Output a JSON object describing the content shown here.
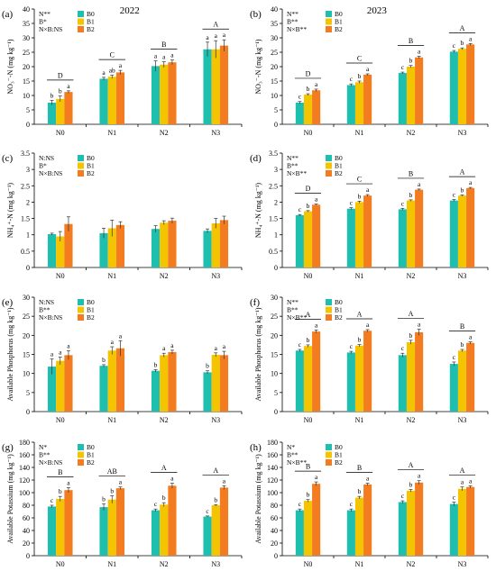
{
  "figure": {
    "colors": {
      "B0": "#1fbfb0",
      "B1": "#f5c400",
      "B2": "#f47c20"
    }
  },
  "chart_data": [
    {
      "panel": "(a)",
      "year": "2022",
      "type": "bar",
      "ylabel": "NO₃⁻-N (mg kg⁻¹)",
      "ylim": [
        0,
        40
      ],
      "yticks": [
        0,
        5,
        10,
        15,
        20,
        25,
        30,
        35,
        40
      ],
      "categories": [
        "N0",
        "N1",
        "N2",
        "N3"
      ],
      "legend": [
        "B0",
        "B1",
        "B2"
      ],
      "stats": [
        "N**",
        "B*",
        "N×B:NS"
      ],
      "group_letters": [
        "D",
        "C",
        "B",
        "A"
      ],
      "series": [
        {
          "name": "B0",
          "color": "#1fbfb0",
          "values": [
            7.5,
            15.8,
            20.2,
            26.0
          ],
          "errors": [
            0.8,
            0.5,
            1.8,
            2.5
          ],
          "letters": [
            "b",
            "a",
            "a",
            "a"
          ]
        },
        {
          "name": "B1",
          "color": "#f5c400",
          "values": [
            8.8,
            16.5,
            20.7,
            26.0
          ],
          "errors": [
            1.0,
            0.6,
            1.0,
            3.0
          ],
          "letters": [
            "b",
            "ab",
            "a",
            "a"
          ]
        },
        {
          "name": "B2",
          "color": "#f47c20",
          "values": [
            11.2,
            18.0,
            21.5,
            27.3
          ],
          "errors": [
            0.4,
            0.7,
            0.8,
            2.0
          ],
          "letters": [
            "a",
            "a",
            "a",
            "a"
          ]
        }
      ]
    },
    {
      "panel": "(b)",
      "year": "2023",
      "type": "bar",
      "ylabel": "NO₃⁻-N (mg kg⁻¹)",
      "ylim": [
        0,
        40
      ],
      "yticks": [
        0,
        5,
        10,
        15,
        20,
        25,
        30,
        35,
        40
      ],
      "categories": [
        "N0",
        "N1",
        "N2",
        "N3"
      ],
      "legend": [
        "B0",
        "B1",
        "B2"
      ],
      "stats": [
        "N**",
        "B**",
        "N×B**"
      ],
      "group_letters": [
        "D",
        "C",
        "B",
        "A"
      ],
      "series": [
        {
          "name": "B0",
          "color": "#1fbfb0",
          "values": [
            7.5,
            13.6,
            17.8,
            25.2
          ],
          "errors": [
            0.4,
            0.4,
            0.3,
            0.4
          ],
          "letters": [
            "c",
            "c",
            "c",
            "c"
          ]
        },
        {
          "name": "B1",
          "color": "#f5c400",
          "values": [
            10.3,
            14.6,
            20.0,
            26.2
          ],
          "errors": [
            0.3,
            0.4,
            0.4,
            0.3
          ],
          "letters": [
            "b",
            "b",
            "b",
            "b"
          ]
        },
        {
          "name": "B2",
          "color": "#f47c20",
          "values": [
            11.8,
            17.2,
            23.2,
            27.7
          ],
          "errors": [
            0.4,
            0.3,
            0.4,
            0.3
          ],
          "letters": [
            "a",
            "a",
            "a",
            "a"
          ]
        }
      ]
    },
    {
      "panel": "(c)",
      "type": "bar",
      "ylabel": "NH₄⁺-N (mg kg⁻¹)",
      "ylim": [
        0,
        3.5
      ],
      "yticks": [
        0,
        0.5,
        1,
        1.5,
        2,
        2.5,
        3,
        3.5
      ],
      "categories": [
        "N0",
        "N1",
        "N2",
        "N3"
      ],
      "legend": [
        "B0",
        "B1",
        "B2"
      ],
      "stats": [
        "N:NS",
        "B*",
        "N×B:NS"
      ],
      "group_letters": [],
      "series": [
        {
          "name": "B0",
          "color": "#1fbfb0",
          "values": [
            1.02,
            1.05,
            1.18,
            1.12
          ],
          "errors": [
            0.03,
            0.15,
            0.1,
            0.06
          ],
          "letters": []
        },
        {
          "name": "B1",
          "color": "#f5c400",
          "values": [
            0.95,
            1.2,
            1.37,
            1.35
          ],
          "errors": [
            0.15,
            0.25,
            0.06,
            0.15
          ],
          "letters": []
        },
        {
          "name": "B2",
          "color": "#f47c20",
          "values": [
            1.33,
            1.3,
            1.43,
            1.45
          ],
          "errors": [
            0.22,
            0.1,
            0.08,
            0.12
          ],
          "letters": []
        }
      ]
    },
    {
      "panel": "(d)",
      "type": "bar",
      "ylabel": "NH₄⁺-N (mg kg⁻¹)",
      "ylim": [
        0,
        3.5
      ],
      "yticks": [
        0,
        0.5,
        1,
        1.5,
        2,
        2.5,
        3,
        3.5
      ],
      "categories": [
        "N0",
        "N1",
        "N2",
        "N3"
      ],
      "legend": [
        "B0",
        "B1",
        "B2"
      ],
      "stats": [
        "N**",
        "B**",
        "N×B**"
      ],
      "group_letters": [
        "D",
        "C",
        "B",
        "A"
      ],
      "series": [
        {
          "name": "B0",
          "color": "#1fbfb0",
          "values": [
            1.6,
            1.8,
            1.78,
            2.05
          ],
          "errors": [
            0.02,
            0.03,
            0.03,
            0.03
          ],
          "letters": [
            "c",
            "c",
            "c",
            "c"
          ]
        },
        {
          "name": "B1",
          "color": "#f5c400",
          "values": [
            1.72,
            2.0,
            2.05,
            2.2
          ],
          "errors": [
            0.02,
            0.03,
            0.02,
            0.02
          ],
          "letters": [
            "b",
            "b",
            "b",
            "b"
          ]
        },
        {
          "name": "B2",
          "color": "#f47c20",
          "values": [
            1.92,
            2.2,
            2.38,
            2.43
          ],
          "errors": [
            0.02,
            0.03,
            0.02,
            0.02
          ],
          "letters": [
            "a",
            "a",
            "a",
            "a"
          ]
        }
      ]
    },
    {
      "panel": "(e)",
      "type": "bar",
      "ylabel": "Available Phosphorus (mg kg⁻¹)",
      "ylim": [
        0,
        30
      ],
      "yticks": [
        0,
        5,
        10,
        15,
        20,
        25,
        30
      ],
      "categories": [
        "N0",
        "N1",
        "N2",
        "N3"
      ],
      "legend": [
        "B0",
        "B1",
        "B2"
      ],
      "stats": [
        "N:NS",
        "B**",
        "N×B:NS"
      ],
      "group_letters": [],
      "series": [
        {
          "name": "B0",
          "color": "#1fbfb0",
          "values": [
            11.8,
            12.0,
            10.7,
            10.3
          ],
          "errors": [
            2.0,
            0.3,
            0.3,
            0.4
          ],
          "letters": [
            "a",
            "b",
            "b",
            "b"
          ]
        },
        {
          "name": "B1",
          "color": "#f5c400",
          "values": [
            13.3,
            16.0,
            14.8,
            14.9
          ],
          "errors": [
            1.0,
            1.0,
            0.5,
            0.5
          ],
          "letters": [
            "a",
            "a",
            "a",
            "a"
          ]
        },
        {
          "name": "B2",
          "color": "#f47c20",
          "values": [
            14.8,
            16.6,
            15.6,
            14.8
          ],
          "errors": [
            1.2,
            2.0,
            0.5,
            1.0
          ],
          "letters": [
            "a",
            "a",
            "a",
            "a"
          ]
        }
      ]
    },
    {
      "panel": "(f)",
      "type": "bar",
      "ylabel": "Available Phosphorus (mg kg⁻¹)",
      "ylim": [
        0,
        30
      ],
      "yticks": [
        0,
        5,
        10,
        15,
        20,
        25,
        30
      ],
      "categories": [
        "N0",
        "N1",
        "N2",
        "N3"
      ],
      "legend": [
        "B0",
        "B1",
        "B2"
      ],
      "stats": [
        "N**",
        "B**",
        "N×B**"
      ],
      "group_letters": [
        "A",
        "A",
        "A",
        "B"
      ],
      "series": [
        {
          "name": "B0",
          "color": "#1fbfb0",
          "values": [
            16.0,
            15.5,
            14.8,
            12.5
          ],
          "errors": [
            0.3,
            0.3,
            0.5,
            0.5
          ],
          "letters": [
            "c",
            "c",
            "c",
            "c"
          ]
        },
        {
          "name": "B1",
          "color": "#f5c400",
          "values": [
            17.2,
            17.3,
            18.2,
            16.0
          ],
          "errors": [
            0.3,
            0.3,
            0.5,
            0.3
          ],
          "letters": [
            "b",
            "b",
            "b",
            "b"
          ]
        },
        {
          "name": "B2",
          "color": "#f47c20",
          "values": [
            21.0,
            21.2,
            20.8,
            18.0
          ],
          "errors": [
            0.4,
            0.3,
            0.8,
            0.3
          ],
          "letters": [
            "a",
            "a",
            "a",
            "a"
          ]
        }
      ]
    },
    {
      "panel": "(g)",
      "type": "bar",
      "ylabel": "Available Potassium (mg kg⁻¹)",
      "ylim": [
        0,
        180
      ],
      "yticks": [
        0,
        20,
        40,
        60,
        80,
        100,
        120,
        140,
        160,
        180
      ],
      "categories": [
        "N0",
        "N1",
        "N2",
        "N3"
      ],
      "legend": [
        "B0",
        "B1",
        "B2"
      ],
      "stats": [
        "N*",
        "B**",
        "N×B:NS"
      ],
      "group_letters": [
        "B",
        "AB",
        "A",
        "A"
      ],
      "series": [
        {
          "name": "B0",
          "color": "#1fbfb0",
          "values": [
            78,
            77,
            72,
            62
          ],
          "errors": [
            2,
            5,
            2,
            1
          ],
          "letters": [
            "c",
            "b",
            "c",
            "c"
          ]
        },
        {
          "name": "B1",
          "color": "#f5c400",
          "values": [
            90,
            89,
            81,
            80
          ],
          "errors": [
            4,
            6,
            3,
            1
          ],
          "letters": [
            "b",
            "b",
            "b",
            "b"
          ]
        },
        {
          "name": "B2",
          "color": "#f47c20",
          "values": [
            104,
            107,
            111,
            108
          ],
          "errors": [
            4,
            2,
            4,
            3
          ],
          "letters": [
            "a",
            "a",
            "a",
            "a"
          ]
        }
      ]
    },
    {
      "panel": "(h)",
      "type": "bar",
      "ylabel": "Available Potassium (mg kg⁻¹)",
      "ylim": [
        0,
        180
      ],
      "yticks": [
        0,
        20,
        40,
        60,
        80,
        100,
        120,
        140,
        160,
        180
      ],
      "categories": [
        "N0",
        "N1",
        "N2",
        "N3"
      ],
      "legend": [
        "B0",
        "B1",
        "B2"
      ],
      "stats": [
        "N*",
        "B**",
        "N×B**"
      ],
      "group_letters": [
        "B",
        "B",
        "A",
        "A"
      ],
      "series": [
        {
          "name": "B0",
          "color": "#1fbfb0",
          "values": [
            72,
            72,
            85,
            82
          ],
          "errors": [
            2,
            2,
            2,
            3
          ],
          "letters": [
            "c",
            "c",
            "c",
            "c"
          ]
        },
        {
          "name": "B1",
          "color": "#f5c400",
          "values": [
            87,
            92,
            103,
            106
          ],
          "errors": [
            2,
            2,
            2,
            3
          ],
          "letters": [
            "b",
            "b",
            "b",
            "a"
          ]
        },
        {
          "name": "B2",
          "color": "#f47c20",
          "values": [
            114,
            113,
            116,
            109
          ],
          "errors": [
            3,
            2,
            3,
            2
          ],
          "letters": [
            "a",
            "a",
            "a",
            "a"
          ]
        }
      ]
    }
  ]
}
